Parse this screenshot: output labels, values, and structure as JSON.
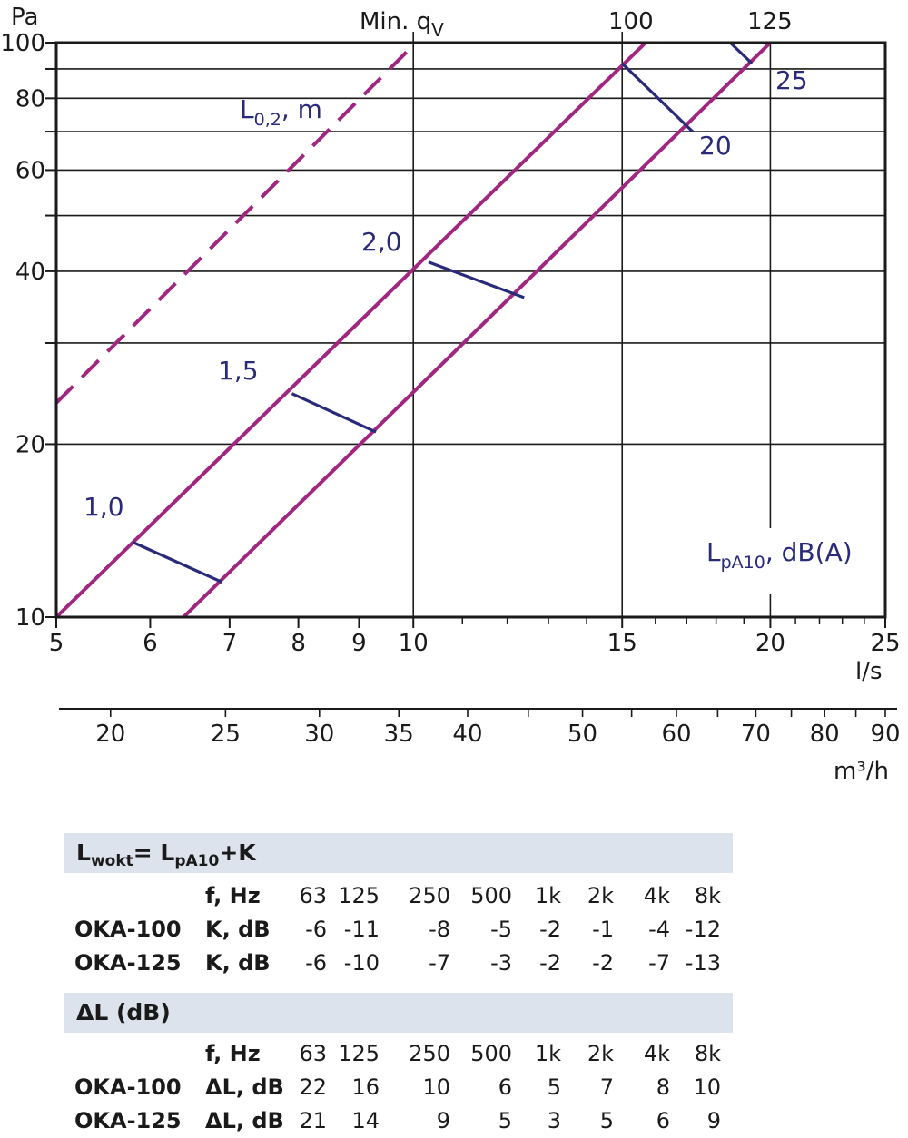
{
  "chart_data": {
    "type": "line",
    "xscale": "log",
    "yscale": "log",
    "xlim": [
      5,
      25
    ],
    "ylim": [
      10,
      100
    ],
    "ylabel": "Pa",
    "xlabel": "l/s",
    "x2label": "m³/h",
    "x_ticks": [
      5,
      6,
      7,
      8,
      9,
      10,
      15,
      20,
      25
    ],
    "x_tick_labels": [
      "5",
      "6",
      "7",
      "8",
      "9",
      "10",
      "15",
      "20",
      "25"
    ],
    "x2_ticks_m3h": [
      20,
      25,
      30,
      35,
      40,
      50,
      60,
      70,
      80,
      90
    ],
    "x2_tick_labels": [
      "20",
      "25",
      "30",
      "35",
      "40",
      "50",
      "60",
      "70",
      "80",
      "90"
    ],
    "y_ticks": [
      10,
      20,
      40,
      60,
      80,
      100
    ],
    "y_tick_labels": [
      "10",
      "20",
      "40",
      "60",
      "80",
      "100"
    ],
    "y_gridlines": [
      10,
      20,
      30,
      40,
      50,
      60,
      70,
      80,
      90,
      100
    ],
    "x_gridlines": [
      10,
      15,
      20
    ],
    "min_qv_label": "Min. q",
    "min_qv_sub": "V",
    "min_qv_line": {
      "x": [
        5,
        10.05
      ],
      "y": [
        23.6,
        100
      ]
    },
    "series": [
      {
        "name": "100",
        "x": [
          5,
          15.7
        ],
        "y": [
          10,
          100
        ]
      },
      {
        "name": "125",
        "x": [
          6.4,
          20.0
        ],
        "y": [
          10,
          100
        ]
      }
    ],
    "throw_length_label_main": "L",
    "throw_length_label_sub": "0,2",
    "throw_length_label_tail": ", m",
    "throw_lines": [
      {
        "label": "1,0",
        "x": [
          5.8,
          6.9
        ],
        "y": [
          13.5,
          11.5
        ]
      },
      {
        "label": "1,5",
        "x": [
          7.9,
          9.3
        ],
        "y": [
          24.5,
          21.0
        ]
      },
      {
        "label": "2,0",
        "x": [
          10.3,
          12.4
        ],
        "y": [
          41.5,
          36.0
        ]
      }
    ],
    "sound_label_main": "L",
    "sound_label_sub": "pA10",
    "sound_label_tail": ", dB(A)",
    "sound_lines": [
      {
        "label": "20",
        "x": [
          15.0,
          17.2
        ],
        "y": [
          92.0,
          70.0
        ]
      },
      {
        "label": "25",
        "x": [
          18.5,
          19.3
        ],
        "y": [
          100,
          92.0
        ]
      }
    ],
    "colors": {
      "series": "#a0267f",
      "annotation": "#2a2a7a",
      "grid": "#1a1a1a"
    }
  },
  "tables": [
    {
      "title_main": "L",
      "title_sub": "wokt",
      "title_mid": "= L",
      "title_sub2": "pA10",
      "title_tail": "+K",
      "freq_label": "f, Hz",
      "freqs": [
        "63",
        "125",
        "250",
        "500",
        "1k",
        "2k",
        "4k",
        "8k"
      ],
      "rows": [
        {
          "model": "OKA-100",
          "param": "K, dB",
          "values": [
            "-6",
            "-11",
            "-8",
            "-5",
            "-2",
            "-1",
            "-4",
            "-12"
          ]
        },
        {
          "model": "OKA-125",
          "param": "K, dB",
          "values": [
            "-6",
            "-10",
            "-7",
            "-3",
            "-2",
            "-2",
            "-7",
            "-13"
          ]
        }
      ]
    },
    {
      "title": "ΔL (dB)",
      "freq_label": "f, Hz",
      "freqs": [
        "63",
        "125",
        "250",
        "500",
        "1k",
        "2k",
        "4k",
        "8k"
      ],
      "rows": [
        {
          "model": "OKA-100",
          "param": "ΔL, dB",
          "values": [
            "22",
            "16",
            "10",
            "6",
            "5",
            "7",
            "8",
            "10"
          ]
        },
        {
          "model": "OKA-125",
          "param": "ΔL, dB",
          "values": [
            "21",
            "14",
            "9",
            "5",
            "3",
            "5",
            "6",
            "9"
          ]
        }
      ]
    }
  ]
}
